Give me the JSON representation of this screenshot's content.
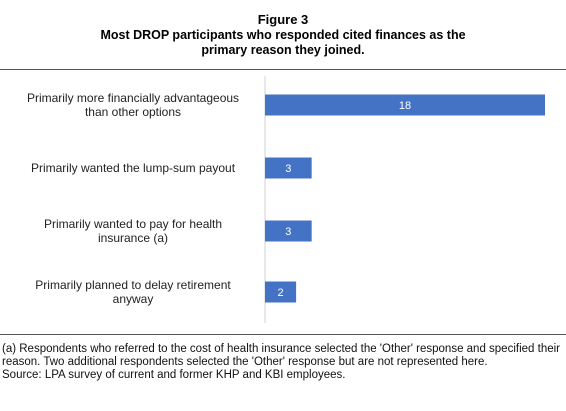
{
  "figure": {
    "label": "Figure 3",
    "title_line1": "Most DROP participants  who responded cited finances as the",
    "title_line2": "primary reason they joined."
  },
  "chart_data": {
    "type": "bar",
    "orientation": "horizontal",
    "categories": [
      [
        "Primarily more financially advantageous",
        "than other options"
      ],
      [
        "Primarily wanted the lump-sum payout"
      ],
      [
        "Primarily wanted to pay for health",
        "insurance (a)"
      ],
      [
        "Primarily planned to delay retirement",
        "anyway"
      ]
    ],
    "values": [
      18,
      3,
      3,
      2
    ],
    "xlim": [
      0,
      18
    ],
    "data_labels": true,
    "bar_color": "#4472C4",
    "grid": false
  },
  "footnotes": {
    "note_a": "(a) Respondents who referred to the cost of health insurance selected the 'Other' response and specified their reason. Two additional respondents selected the 'Other' response but are not represented here.",
    "source": "Source: LPA survey of current and former KHP and KBI employees."
  }
}
